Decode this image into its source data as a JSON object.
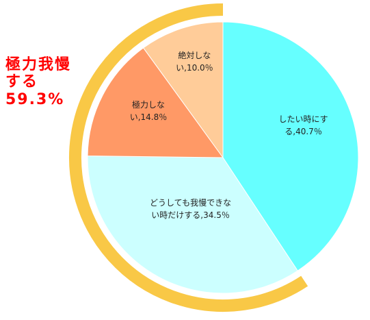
{
  "chart_data": {
    "type": "pie",
    "categories": [
      "したい時にする,",
      "どうしても我慢できない時だけする,",
      "極力しない,",
      "絶対しない,"
    ],
    "values": [
      40.7,
      34.5,
      14.8,
      10.0
    ],
    "value_labels": [
      "40.7％",
      "34.5％",
      "14.8％",
      "10.0％"
    ],
    "colors": [
      "#66ffff",
      "#ccffff",
      "#ff9966",
      "#ffcc99"
    ],
    "annotation": {
      "text": "極力我慢する",
      "value": 59.3,
      "value_label": "59.3%",
      "color": "#f9c846",
      "text_color": "#ff0000"
    }
  }
}
